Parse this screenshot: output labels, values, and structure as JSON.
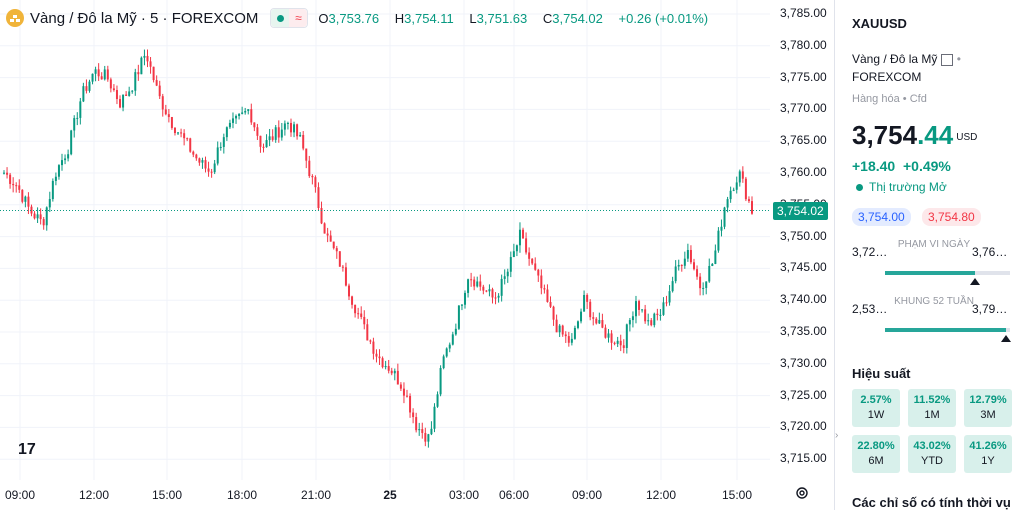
{
  "header": {
    "title": "Vàng / Đô la Mỹ · 5 · FOREXCOM",
    "open_label": "O",
    "open": "3,753.76",
    "high_label": "H",
    "high": "3,754.11",
    "low_label": "L",
    "low": "3,751.63",
    "close_label": "C",
    "close": "3,754.02",
    "change": "+0.26 (+0.01%)",
    "status_icon": "≈"
  },
  "y_axis": {
    "ticks": [
      "3,785.00",
      "3,780.00",
      "3,775.00",
      "3,770.00",
      "3,765.00",
      "3,760.00",
      "3,755.00",
      "3,750.00",
      "3,745.00",
      "3,740.00",
      "3,735.00",
      "3,730.00",
      "3,725.00",
      "3,720.00",
      "3,715.00"
    ]
  },
  "x_axis": {
    "ticks": [
      "09:00",
      "12:00",
      "15:00",
      "18:00",
      "21:00",
      "25",
      "03:00",
      "06:00",
      "09:00",
      "12:00",
      "15:00"
    ]
  },
  "current_price_tag": "3,754.02",
  "logo_text": "17",
  "chart_data": {
    "type": "candlestick",
    "y_range": [
      3713,
      3786
    ],
    "current_price": 3754.02,
    "path_points": [
      3760,
      3758,
      3754,
      3752,
      3760,
      3764,
      3772,
      3776,
      3775,
      3771,
      3774,
      3779,
      3772,
      3768,
      3765,
      3762,
      3760,
      3766,
      3768,
      3770,
      3764,
      3766,
      3768,
      3765,
      3758,
      3750,
      3746,
      3740,
      3735,
      3731,
      3729,
      3726,
      3720,
      3718,
      3730,
      3736,
      3744,
      3742,
      3740,
      3744,
      3750,
      3745,
      3740,
      3735,
      3733,
      3740,
      3736,
      3734,
      3733,
      3740,
      3736,
      3738,
      3744,
      3748,
      3742,
      3746,
      3756,
      3760,
      3754
    ],
    "up_color": "#089981",
    "down_color": "#f23645"
  },
  "panel": {
    "symbol": "XAUUSD",
    "description": "Vàng / Đô la Mỹ",
    "exchange": "FOREXCOM",
    "category": "Hàng hóa",
    "type": "Cfd",
    "price_main": "3,754",
    "price_decimals": ".44",
    "currency": "USD",
    "change_abs": "+18.40",
    "change_pct": "+0.49%",
    "market_status": "Thị trường Mở",
    "bid": "3,754.00",
    "ask": "3,754.80",
    "day_range": {
      "low": "3,72…",
      "high": "3,76…",
      "label": "PHẠM VI NGÀY",
      "position": 0.72
    },
    "week52_range": {
      "low": "2,53…",
      "high": "3,79…",
      "label": "KHUNG 52 TUẦN",
      "position": 0.97
    },
    "performance_title": "Hiệu suất",
    "performance": [
      {
        "value": "2.57%",
        "period": "1W"
      },
      {
        "value": "11.52%",
        "period": "1M"
      },
      {
        "value": "12.79%",
        "period": "3M"
      },
      {
        "value": "22.80%",
        "period": "6M"
      },
      {
        "value": "43.02%",
        "period": "YTD"
      },
      {
        "value": "41.26%",
        "period": "1Y"
      }
    ],
    "technicals_title": "Các chỉ số có tính thời vụ"
  }
}
